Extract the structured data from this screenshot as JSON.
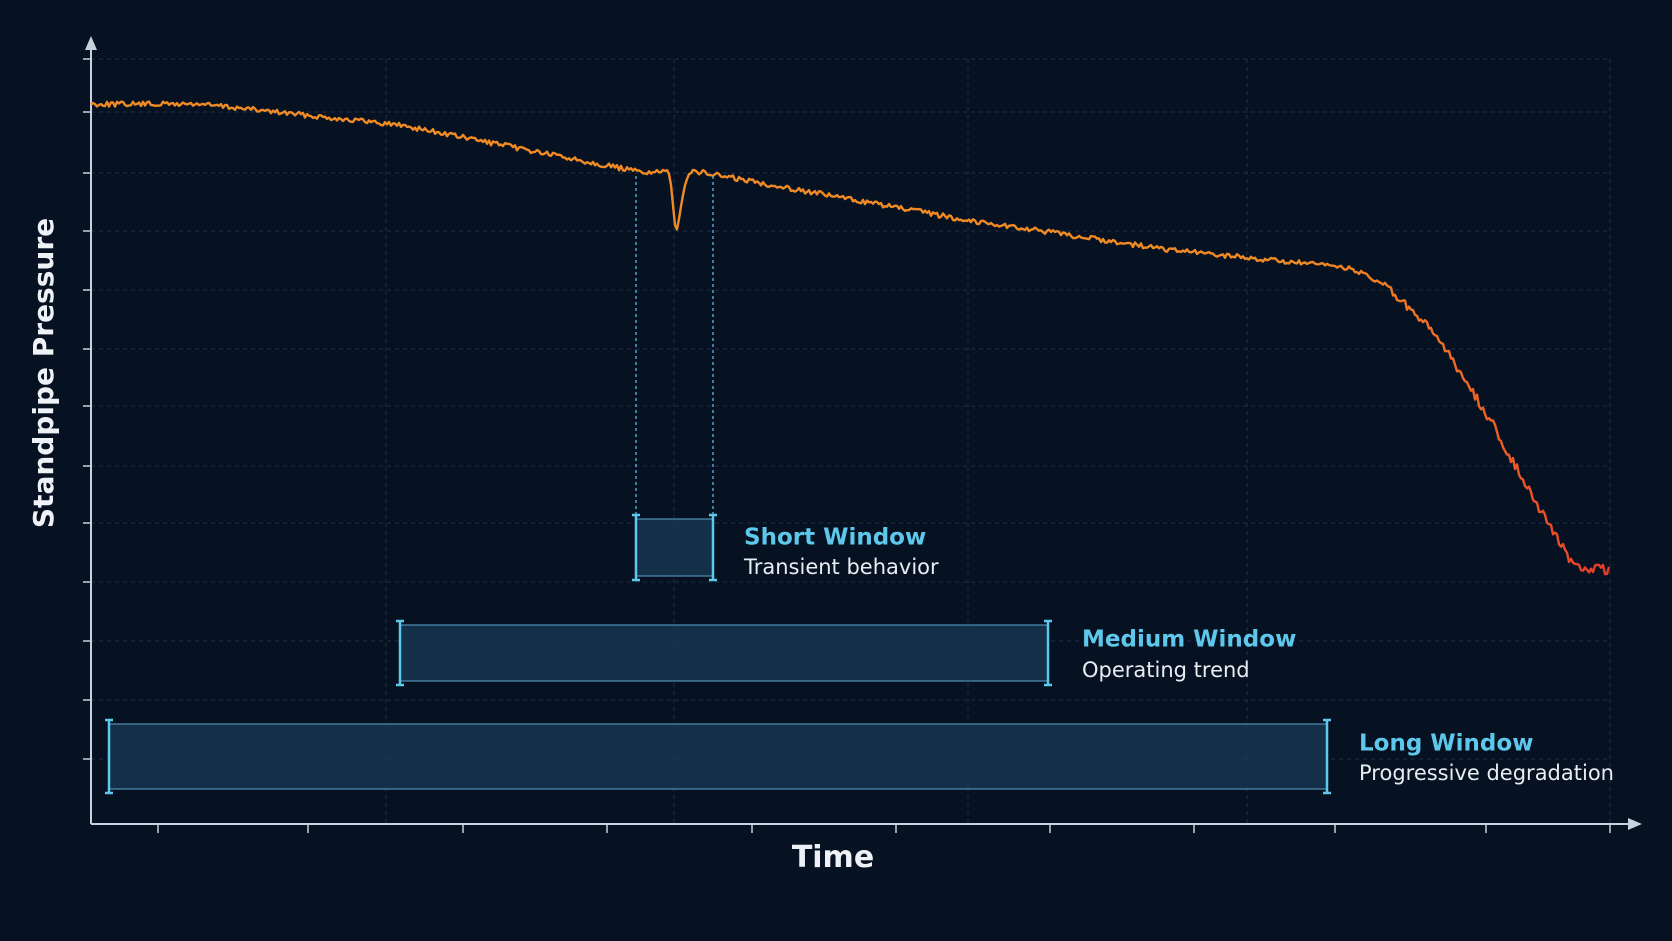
{
  "axes": {
    "y_label": "Standpipe Pressure",
    "x_label": "Time"
  },
  "windows": [
    {
      "title": "Short Window",
      "subtitle": "Transient behavior"
    },
    {
      "title": "Medium Window",
      "subtitle": "Operating trend"
    },
    {
      "title": "Long Window",
      "subtitle": "Progressive degradation"
    }
  ]
}
